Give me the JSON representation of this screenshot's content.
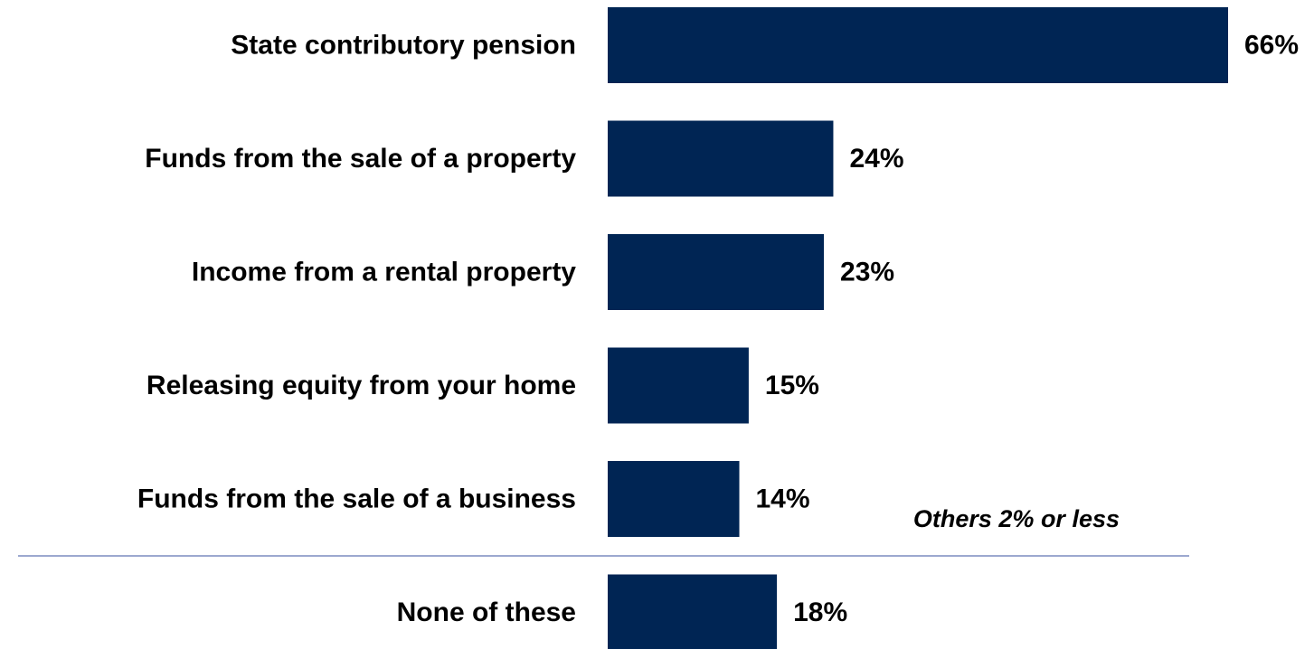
{
  "chart_data": {
    "type": "bar",
    "orientation": "horizontal",
    "categories": [
      "State contributory pension",
      "Funds from the sale of a property",
      "Income from a rental property",
      "Releasing equity from your home",
      "Funds from the sale of a business",
      "None of these"
    ],
    "values": [
      66,
      24,
      23,
      15,
      14,
      18
    ],
    "value_labels": [
      "66%",
      "24%",
      "23%",
      "15%",
      "14%",
      "18%"
    ],
    "unit": "%",
    "title": "",
    "xlabel": "",
    "ylabel": "",
    "xlim": [
      0,
      66
    ],
    "grid": false,
    "legend": "none",
    "annotations": [
      "Others 2% or less"
    ],
    "separator_before_index": 5,
    "colors": {
      "bar": "#002554",
      "separator": "#7b8bbf"
    }
  }
}
